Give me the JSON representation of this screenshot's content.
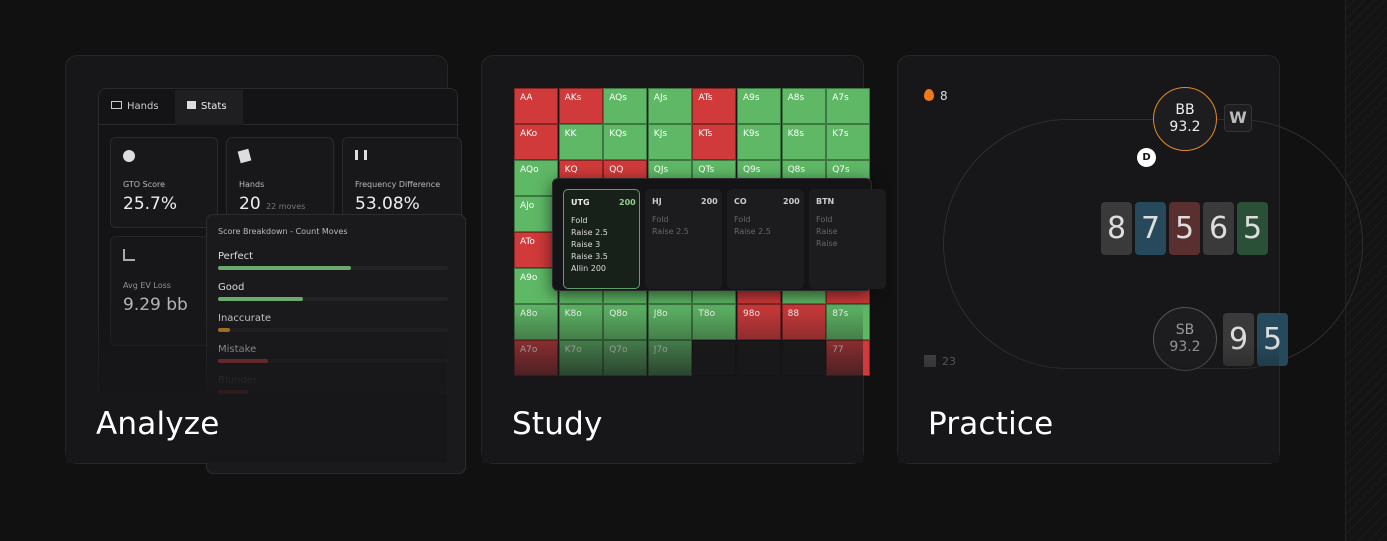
{
  "cards": [
    {
      "title": "Analyze",
      "tabs": [
        "Hands",
        "Stats"
      ],
      "stats": [
        {
          "label": "GTO Score",
          "value": "25.7%"
        },
        {
          "label": "Hands",
          "value": "20",
          "note": "22 moves"
        },
        {
          "label": "Frequency Difference",
          "value": "53.08%"
        },
        {
          "label": "Avg EV Loss",
          "value": "9.29 bb"
        }
      ],
      "breakdown": {
        "title": "Score Breakdown - Count Moves",
        "items": [
          "Perfect",
          "Good",
          "Inaccurate",
          "Mistake",
          "Blunder"
        ]
      }
    },
    {
      "title": "Study",
      "grid": [
        [
          {
            "label": "AA",
            "fill": "#d03a3a"
          },
          {
            "label": "AKs",
            "fill": "#d03a3a"
          },
          {
            "label": "AQs",
            "fill": "#5fb866"
          },
          {
            "label": "AJs",
            "fill": "#5fb866"
          },
          {
            "label": "ATs",
            "fill": "#d03a3a"
          },
          {
            "label": "A9s",
            "fill": "#5fb866"
          },
          {
            "label": "A8s",
            "fill": "#5fb866"
          },
          {
            "label": "A7s",
            "fill": "#5fb866"
          }
        ],
        [
          {
            "label": "AKo",
            "fill": "#d03a3a"
          },
          {
            "label": "KK",
            "fill": "#5fb866"
          },
          {
            "label": "KQs",
            "fill": "#5fb866"
          },
          {
            "label": "KJs",
            "fill": "#5fb866"
          },
          {
            "label": "KTs",
            "fill": "#d03a3a"
          },
          {
            "label": "K9s",
            "fill": "#5fb866"
          },
          {
            "label": "K8s",
            "fill": "#5fb866"
          },
          {
            "label": "K7s",
            "fill": "#5fb866"
          }
        ],
        [
          {
            "label": "AQo",
            "fill": "#5fb866"
          },
          {
            "label": "KQ",
            "fill": "#d03a3a"
          },
          {
            "label": "QQ",
            "fill": "#d03a3a"
          },
          {
            "label": "QJs",
            "fill": "#5fb866"
          },
          {
            "label": "QTs",
            "fill": "#5fb866"
          },
          {
            "label": "Q9s",
            "fill": "#5fb866"
          },
          {
            "label": "Q8s",
            "fill": "#5fb866"
          },
          {
            "label": "Q7s",
            "fill": "#5fb866"
          }
        ],
        [
          {
            "label": "AJo",
            "fill": "#5fb866"
          },
          {
            "label": null,
            "fill": "#5fb866"
          },
          {
            "label": null,
            "fill": "#d03a3a"
          },
          {
            "label": null,
            "fill": "#5fb866"
          },
          {
            "label": null,
            "fill": "#5fb866"
          },
          {
            "label": null,
            "fill": "#5fb866"
          },
          {
            "label": null,
            "fill": "#5fb866"
          },
          {
            "label": null,
            "fill": "#5fb866"
          }
        ],
        [
          {
            "label": "ATo",
            "fill": "#d03a3a"
          },
          {
            "label": null,
            "fill": "#5fb866"
          },
          {
            "label": null,
            "fill": "#5fb866"
          },
          {
            "label": null,
            "fill": "#5fb866"
          },
          {
            "label": null,
            "fill": "#5fb866"
          },
          {
            "label": null,
            "fill": "#5fb866"
          },
          {
            "label": null,
            "fill": "#5fb866"
          },
          {
            "label": null,
            "fill": "#5fb866"
          }
        ],
        [
          {
            "label": "A9o",
            "fill": "#5fb866"
          },
          {
            "label": null,
            "fill": "#5fb866"
          },
          {
            "label": null,
            "fill": "#5fb866"
          },
          {
            "label": null,
            "fill": "#5fb866"
          },
          {
            "label": null,
            "fill": "#5fb866"
          },
          {
            "label": null,
            "fill": "#d03a3a"
          },
          {
            "label": null,
            "fill": "#5fb866"
          },
          {
            "label": null,
            "fill": "#d03a3a"
          }
        ],
        [
          {
            "label": "A8o",
            "fill": "#5fb866"
          },
          {
            "label": "K8o",
            "fill": "#5fb866"
          },
          {
            "label": "Q8o",
            "fill": "#5fb866"
          },
          {
            "label": "J8o",
            "fill": "#5fb866"
          },
          {
            "label": "T8o",
            "fill": "#5fb866"
          },
          {
            "label": "98o",
            "fill": "#d03a3a"
          },
          {
            "label": "88",
            "fill": "#d03a3a"
          },
          {
            "label": "87s",
            "fill": "#5fb866"
          }
        ],
        [
          {
            "label": "A7o",
            "fill": "#d03a3a"
          },
          {
            "label": "K7o",
            "fill": "#5fb866"
          },
          {
            "label": "Q7o",
            "fill": "#5fb866"
          },
          {
            "label": "J7o",
            "fill": "#5fb866"
          },
          {
            "label": null,
            "fill": "#1a1a1a"
          },
          {
            "label": null,
            "fill": "#1a1a1a"
          },
          {
            "label": null,
            "fill": "#1a1a1a"
          },
          {
            "label": "77",
            "fill": "#d03a3a"
          }
        ]
      ],
      "popup": [
        {
          "position": "UTG",
          "stack": "200",
          "actions": [
            "Fold",
            "Raise 2.5",
            "Raise 3",
            "Raise 3.5",
            "Allin 200"
          ]
        },
        {
          "position": "HJ",
          "stack": "200",
          "actions": [
            "Fold",
            "Raise 2.5"
          ]
        },
        {
          "position": "CO",
          "stack": "200",
          "actions": [
            "Fold",
            "Raise 2.5"
          ]
        },
        {
          "position": "BTN",
          "actions": [
            "Fold",
            "Raise",
            "Raise"
          ]
        }
      ]
    },
    {
      "title": "Practice",
      "streak": "8",
      "players": [
        {
          "seat": "BB",
          "stack": "93.2"
        },
        {
          "seat": "SB",
          "stack": "93.2"
        }
      ],
      "dealer": "D",
      "logo": "W",
      "board": [
        {
          "rank": "8",
          "color": "#3a3a3a"
        },
        {
          "rank": "7",
          "color": "#264a5c"
        },
        {
          "rank": "5",
          "color": "#5a2f2f"
        },
        {
          "rank": "6",
          "color": "#3a3a3a"
        },
        {
          "rank": "5",
          "color": "#2a5038"
        }
      ],
      "hand": [
        {
          "rank": "9",
          "color": "#3a3a3a"
        },
        {
          "rank": "5",
          "color": "#264a5c"
        }
      ],
      "count": "23"
    }
  ]
}
